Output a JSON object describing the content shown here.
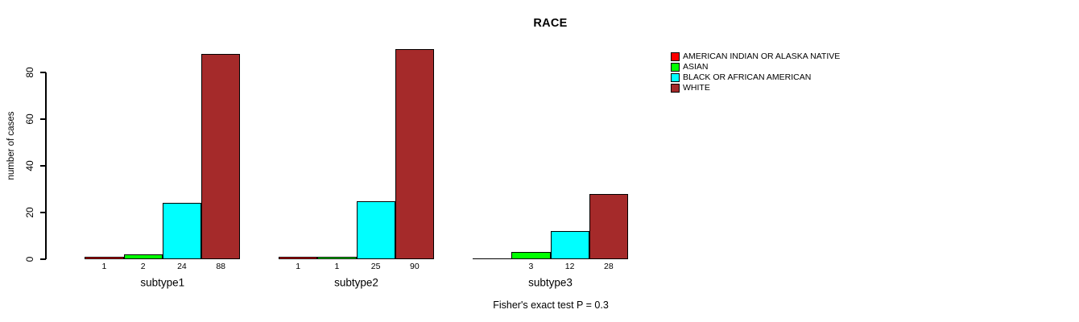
{
  "chart_data": {
    "type": "bar",
    "title": "RACE",
    "ylabel": "number of cases",
    "xlabel": "",
    "categories": [
      "subtype1",
      "subtype2",
      "subtype3"
    ],
    "series": [
      {
        "name": "AMERICAN INDIAN OR ALASKA NATIVE",
        "color": "#FF0000",
        "values": [
          1,
          1,
          0
        ]
      },
      {
        "name": "ASIAN",
        "color": "#00FF00",
        "values": [
          2,
          1,
          3
        ]
      },
      {
        "name": "BLACK OR AFRICAN AMERICAN",
        "color": "#00FFFF",
        "values": [
          24,
          25,
          12
        ]
      },
      {
        "name": "WHITE",
        "color": "#A52A2A",
        "values": [
          88,
          90,
          28
        ]
      }
    ],
    "yticks": [
      0,
      20,
      40,
      60,
      80
    ],
    "ylim": [
      0,
      92
    ],
    "grid": false,
    "bar_value_labels": true,
    "zero_values_unlabeled": true,
    "legend_position": "right",
    "annotation": "Fisher's exact test P = 0.3",
    "axis_color": "#000000",
    "background_color": "#FFFFFF"
  }
}
